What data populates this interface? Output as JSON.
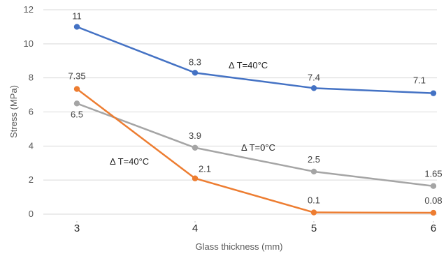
{
  "chart_data": {
    "type": "line",
    "title": "",
    "xlabel": "Glass thickness (mm)",
    "ylabel": "Stress (MPa)",
    "x": [
      3,
      4,
      5,
      6
    ],
    "xlim": [
      3,
      6
    ],
    "ylim": [
      0,
      12
    ],
    "yticks": [
      0,
      2,
      4,
      6,
      8,
      10,
      12
    ],
    "grid": true,
    "legend": "none",
    "series": [
      {
        "values": [
          11,
          8.3,
          7.4,
          7.1
        ],
        "labels": [
          "11",
          "8.3",
          "7.4",
          "7.1"
        ],
        "color": "#4472C4"
      },
      {
        "values": [
          6.5,
          3.9,
          2.5,
          1.65
        ],
        "labels": [
          "6.5",
          "3.9",
          "2.5",
          "1.65"
        ],
        "color": "#A5A5A5"
      },
      {
        "values": [
          7.35,
          2.1,
          0.1,
          0.08
        ],
        "labels": [
          "7.35",
          "2.1",
          "0.1",
          "0.08"
        ],
        "color": "#ED7D31"
      }
    ],
    "annotations": [
      "Δ T=40°C",
      "Δ T=0°C",
      "Δ T=40°C"
    ]
  }
}
